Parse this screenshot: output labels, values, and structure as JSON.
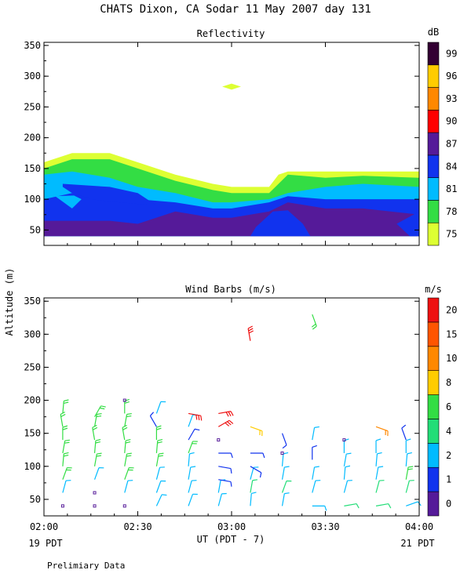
{
  "title": "CHATS Dixon, CA  Sodar  11 May 2007  day 131",
  "ylabel": "Altitude (m)",
  "xlabel": "UT  (PDT - 7)",
  "date_left": "19 PDT",
  "date_right": "21 PDT",
  "footer": "Prelimiary Data",
  "x_ticks": [
    "02:00",
    "02:30",
    "03:00",
    "03:30",
    "04:00"
  ],
  "y_ticks": [
    50,
    100,
    150,
    200,
    250,
    300,
    350
  ],
  "chart_data": [
    {
      "type": "heatmap",
      "title": "Reflectivity",
      "xlim": [
        2.0,
        4.0
      ],
      "ylim": [
        25,
        355
      ],
      "colorbar": {
        "unit": "dB",
        "labels": [
          "75",
          "78",
          "81",
          "84",
          "87",
          "90",
          "93",
          "96",
          "99"
        ],
        "colors": [
          "#ddff33",
          "#33dd44",
          "#00bbff",
          "#1133ee",
          "#551a99",
          "#ff0000",
          "#ff8800",
          "#ffcc00",
          "#330033"
        ]
      },
      "layers": [
        {
          "level": "75",
          "color": "#ddff33",
          "top": [
            [
              2.0,
              160
            ],
            [
              2.15,
              175
            ],
            [
              2.35,
              175
            ],
            [
              2.5,
              160
            ],
            [
              2.7,
              140
            ],
            [
              2.9,
              125
            ],
            [
              3.0,
              120
            ],
            [
              3.2,
              120
            ],
            [
              3.25,
              140
            ],
            [
              3.3,
              145
            ],
            [
              3.5,
              145
            ],
            [
              3.7,
              145
            ],
            [
              4.0,
              145
            ]
          ]
        },
        {
          "level": "78",
          "color": "#33dd44",
          "top": [
            [
              2.0,
              150
            ],
            [
              2.15,
              165
            ],
            [
              2.35,
              165
            ],
            [
              2.5,
              150
            ],
            [
              2.7,
              130
            ],
            [
              2.9,
              115
            ],
            [
              3.0,
              110
            ],
            [
              3.2,
              110
            ],
            [
              3.25,
              125
            ],
            [
              3.3,
              140
            ],
            [
              3.5,
              135
            ],
            [
              3.7,
              138
            ],
            [
              4.0,
              135
            ]
          ]
        },
        {
          "level": "81",
          "color": "#00bbff",
          "top": [
            [
              2.0,
              140
            ],
            [
              2.15,
              145
            ],
            [
              2.35,
              135
            ],
            [
              2.5,
              120
            ],
            [
              2.7,
              110
            ],
            [
              2.9,
              95
            ],
            [
              3.0,
              95
            ],
            [
              3.2,
              100
            ],
            [
              3.3,
              110
            ],
            [
              3.5,
              120
            ],
            [
              3.7,
              125
            ],
            [
              4.0,
              120
            ]
          ]
        },
        {
          "level": "84",
          "color": "#1133ee",
          "top": [
            [
              2.0,
              100
            ],
            [
              2.15,
              110
            ],
            [
              2.35,
              110
            ],
            [
              2.5,
              100
            ],
            [
              2.7,
              95
            ],
            [
              2.9,
              85
            ],
            [
              3.0,
              85
            ],
            [
              3.2,
              95
            ],
            [
              3.3,
              105
            ],
            [
              3.5,
              100
            ],
            [
              3.7,
              100
            ],
            [
              4.0,
              100
            ]
          ]
        },
        {
          "level": "87",
          "color": "#551a99",
          "top": [
            [
              2.0,
              65
            ],
            [
              2.15,
              65
            ],
            [
              2.35,
              65
            ],
            [
              2.5,
              60
            ],
            [
              2.7,
              80
            ],
            [
              2.9,
              70
            ],
            [
              3.0,
              70
            ],
            [
              3.2,
              80
            ],
            [
              3.3,
              95
            ],
            [
              3.5,
              85
            ],
            [
              3.7,
              85
            ],
            [
              4.0,
              75
            ]
          ]
        }
      ],
      "features": [
        {
          "kind": "blob",
          "level": "84",
          "color": "#1133ee",
          "points": [
            [
              2.1,
              125
            ],
            [
              2.35,
              120
            ],
            [
              2.5,
              110
            ],
            [
              2.6,
              90
            ],
            [
              2.4,
              95
            ],
            [
              2.25,
              100
            ],
            [
              2.18,
              108
            ],
            [
              2.15,
              110
            ],
            [
              2.1,
              120
            ]
          ]
        },
        {
          "kind": "blob",
          "level": "81",
          "color": "#00bbff",
          "points": [
            [
              2.06,
              105
            ],
            [
              2.16,
              106
            ],
            [
              2.2,
              100
            ],
            [
              2.15,
              85
            ]
          ]
        },
        {
          "kind": "blob",
          "level": "84",
          "color": "#1133ee",
          "points": [
            [
              3.13,
              55
            ],
            [
              3.22,
              80
            ],
            [
              3.3,
              82
            ],
            [
              3.38,
              60
            ],
            [
              3.42,
              40
            ],
            [
              3.1,
              40
            ]
          ]
        },
        {
          "kind": "blob",
          "level": "84",
          "color": "#1133ee",
          "points": [
            [
              3.95,
              40
            ],
            [
              3.88,
              60
            ],
            [
              4.0,
              80
            ],
            [
              4.0,
              40
            ]
          ]
        },
        {
          "kind": "patch",
          "level": "75",
          "color": "#ddff33",
          "points": [
            [
              2.95,
              283
            ],
            [
              3.0,
              288
            ],
            [
              3.05,
              283
            ],
            [
              3.0,
              278
            ]
          ]
        }
      ]
    },
    {
      "type": "scatter",
      "title": "Wind Barbs (m/s)",
      "xlim": [
        2.0,
        4.0
      ],
      "ylim": [
        25,
        355
      ],
      "colorbar": {
        "unit": "m/s",
        "labels": [
          "0",
          "1",
          "2",
          "4",
          "6",
          "8",
          "10",
          "15",
          "20"
        ],
        "colors": [
          "#551a99",
          "#1133ee",
          "#00bbff",
          "#22dd77",
          "#33dd44",
          "#ffcc00",
          "#ff8800",
          "#ff5500",
          "#ee1111"
        ]
      },
      "barbs": [
        {
          "t": 2.1,
          "alt": 40,
          "dir": "calm",
          "color": "#551a99"
        },
        {
          "t": 2.1,
          "alt": 60,
          "dir": 15,
          "color": "#00bbff"
        },
        {
          "t": 2.1,
          "alt": 80,
          "dir": 20,
          "color": "#33dd44"
        },
        {
          "t": 2.1,
          "alt": 100,
          "dir": 5,
          "color": "#33dd44"
        },
        {
          "t": 2.1,
          "alt": 120,
          "dir": 10,
          "color": "#33dd44"
        },
        {
          "t": 2.1,
          "alt": 140,
          "dir": 0,
          "color": "#33dd44"
        },
        {
          "t": 2.1,
          "alt": 160,
          "dir": 350,
          "color": "#33dd44"
        },
        {
          "t": 2.1,
          "alt": 180,
          "dir": 5,
          "color": "#33dd44"
        },
        {
          "t": 2.27,
          "alt": 40,
          "dir": "calm",
          "color": "#551a99"
        },
        {
          "t": 2.27,
          "alt": 60,
          "dir": "calm",
          "color": "#551a99"
        },
        {
          "t": 2.27,
          "alt": 80,
          "dir": 20,
          "color": "#00bbff"
        },
        {
          "t": 2.27,
          "alt": 100,
          "dir": 10,
          "color": "#33dd44"
        },
        {
          "t": 2.27,
          "alt": 120,
          "dir": 5,
          "color": "#33dd44"
        },
        {
          "t": 2.27,
          "alt": 140,
          "dir": 350,
          "color": "#33dd44"
        },
        {
          "t": 2.27,
          "alt": 160,
          "dir": 10,
          "color": "#33dd44"
        },
        {
          "t": 2.27,
          "alt": 175,
          "dir": 30,
          "color": "#33dd44"
        },
        {
          "t": 2.43,
          "alt": 40,
          "dir": "calm",
          "color": "#551a99"
        },
        {
          "t": 2.43,
          "alt": 60,
          "dir": 15,
          "color": "#00bbff"
        },
        {
          "t": 2.43,
          "alt": 80,
          "dir": 20,
          "color": "#33dd44"
        },
        {
          "t": 2.43,
          "alt": 100,
          "dir": 10,
          "color": "#33dd44"
        },
        {
          "t": 2.43,
          "alt": 120,
          "dir": 5,
          "color": "#33dd44"
        },
        {
          "t": 2.43,
          "alt": 140,
          "dir": 350,
          "color": "#33dd44"
        },
        {
          "t": 2.43,
          "alt": 160,
          "dir": 10,
          "color": "#33dd44"
        },
        {
          "t": 2.43,
          "alt": 180,
          "dir": 0,
          "color": "#33dd44"
        },
        {
          "t": 2.43,
          "alt": 200,
          "dir": "calm",
          "color": "#551a99"
        },
        {
          "t": 2.6,
          "alt": 40,
          "dir": 25,
          "color": "#00bbff"
        },
        {
          "t": 2.6,
          "alt": 60,
          "dir": 20,
          "color": "#00bbff"
        },
        {
          "t": 2.6,
          "alt": 80,
          "dir": 15,
          "color": "#00bbff"
        },
        {
          "t": 2.6,
          "alt": 100,
          "dir": 10,
          "color": "#33dd44"
        },
        {
          "t": 2.6,
          "alt": 120,
          "dir": 5,
          "color": "#33dd44"
        },
        {
          "t": 2.6,
          "alt": 140,
          "dir": 0,
          "color": "#33dd44"
        },
        {
          "t": 2.6,
          "alt": 160,
          "dir": 330,
          "color": "#1133ee"
        },
        {
          "t": 2.6,
          "alt": 180,
          "dir": 20,
          "color": "#00bbff"
        },
        {
          "t": 2.77,
          "alt": 40,
          "dir": 20,
          "color": "#00bbff"
        },
        {
          "t": 2.77,
          "alt": 60,
          "dir": 15,
          "color": "#00bbff"
        },
        {
          "t": 2.77,
          "alt": 80,
          "dir": 10,
          "color": "#00bbff"
        },
        {
          "t": 2.77,
          "alt": 100,
          "dir": 5,
          "color": "#00bbff"
        },
        {
          "t": 2.77,
          "alt": 120,
          "dir": 20,
          "color": "#33dd44"
        },
        {
          "t": 2.77,
          "alt": 140,
          "dir": 30,
          "color": "#1133ee"
        },
        {
          "t": 2.77,
          "alt": 160,
          "dir": 20,
          "color": "#00bbff"
        },
        {
          "t": 2.77,
          "alt": 180,
          "dir": 100,
          "color": "#ee1111"
        },
        {
          "t": 2.93,
          "alt": 40,
          "dir": 15,
          "color": "#00bbff"
        },
        {
          "t": 2.93,
          "alt": 60,
          "dir": 10,
          "color": "#00bbff"
        },
        {
          "t": 2.93,
          "alt": 80,
          "dir": 100,
          "color": "#1133ee"
        },
        {
          "t": 2.93,
          "alt": 100,
          "dir": 100,
          "color": "#1133ee"
        },
        {
          "t": 2.93,
          "alt": 120,
          "dir": 90,
          "color": "#1133ee"
        },
        {
          "t": 2.93,
          "alt": 140,
          "dir": "calm",
          "color": "#551a99"
        },
        {
          "t": 2.93,
          "alt": 160,
          "dir": 60,
          "color": "#ee1111"
        },
        {
          "t": 2.93,
          "alt": 180,
          "dir": 80,
          "color": "#ee1111"
        },
        {
          "t": 3.1,
          "alt": 40,
          "dir": 5,
          "color": "#00bbff"
        },
        {
          "t": 3.1,
          "alt": 60,
          "dir": 10,
          "color": "#22dd77"
        },
        {
          "t": 3.1,
          "alt": 80,
          "dir": 15,
          "color": "#00bbff"
        },
        {
          "t": 3.1,
          "alt": 100,
          "dir": 120,
          "color": "#1133ee"
        },
        {
          "t": 3.1,
          "alt": 120,
          "dir": 90,
          "color": "#1133ee"
        },
        {
          "t": 3.1,
          "alt": 160,
          "dir": 110,
          "color": "#ffcc00"
        },
        {
          "t": 3.1,
          "alt": 290,
          "dir": 350,
          "color": "#ee1111"
        },
        {
          "t": 3.27,
          "alt": 40,
          "dir": 10,
          "color": "#00bbff"
        },
        {
          "t": 3.27,
          "alt": 60,
          "dir": 20,
          "color": "#22dd77"
        },
        {
          "t": 3.27,
          "alt": 80,
          "dir": 10,
          "color": "#00bbff"
        },
        {
          "t": 3.27,
          "alt": 100,
          "dir": 5,
          "color": "#00bbff"
        },
        {
          "t": 3.27,
          "alt": 120,
          "dir": "calm",
          "color": "#551a99"
        },
        {
          "t": 3.27,
          "alt": 150,
          "dir": 160,
          "color": "#1133ee"
        },
        {
          "t": 3.43,
          "alt": 40,
          "dir": 90,
          "color": "#00bbff"
        },
        {
          "t": 3.43,
          "alt": 60,
          "dir": 15,
          "color": "#00bbff"
        },
        {
          "t": 3.43,
          "alt": 80,
          "dir": 10,
          "color": "#00bbff"
        },
        {
          "t": 3.43,
          "alt": 110,
          "dir": 0,
          "color": "#1133ee"
        },
        {
          "t": 3.43,
          "alt": 140,
          "dir": 10,
          "color": "#00bbff"
        },
        {
          "t": 3.43,
          "alt": 330,
          "dir": 160,
          "color": "#33dd44"
        },
        {
          "t": 3.6,
          "alt": 40,
          "dir": 80,
          "color": "#22dd77"
        },
        {
          "t": 3.6,
          "alt": 60,
          "dir": 15,
          "color": "#00bbff"
        },
        {
          "t": 3.6,
          "alt": 80,
          "dir": 5,
          "color": "#00bbff"
        },
        {
          "t": 3.6,
          "alt": 100,
          "dir": 10,
          "color": "#00bbff"
        },
        {
          "t": 3.6,
          "alt": 120,
          "dir": 0,
          "color": "#00bbff"
        },
        {
          "t": 3.6,
          "alt": 140,
          "dir": "calm",
          "color": "#551a99"
        },
        {
          "t": 3.77,
          "alt": 40,
          "dir": 80,
          "color": "#22dd77"
        },
        {
          "t": 3.77,
          "alt": 60,
          "dir": 15,
          "color": "#22dd77"
        },
        {
          "t": 3.77,
          "alt": 80,
          "dir": 10,
          "color": "#00bbff"
        },
        {
          "t": 3.77,
          "alt": 100,
          "dir": 5,
          "color": "#00bbff"
        },
        {
          "t": 3.77,
          "alt": 120,
          "dir": 0,
          "color": "#00bbff"
        },
        {
          "t": 3.77,
          "alt": 160,
          "dir": 110,
          "color": "#ff8800"
        },
        {
          "t": 3.93,
          "alt": 40,
          "dir": 70,
          "color": "#00bbff"
        },
        {
          "t": 3.93,
          "alt": 60,
          "dir": 15,
          "color": "#22dd77"
        },
        {
          "t": 3.93,
          "alt": 80,
          "dir": 10,
          "color": "#33dd44"
        },
        {
          "t": 3.93,
          "alt": 100,
          "dir": 5,
          "color": "#00bbff"
        },
        {
          "t": 3.93,
          "alt": 120,
          "dir": 0,
          "color": "#00bbff"
        },
        {
          "t": 3.93,
          "alt": 140,
          "dir": 340,
          "color": "#1133ee"
        }
      ]
    }
  ]
}
